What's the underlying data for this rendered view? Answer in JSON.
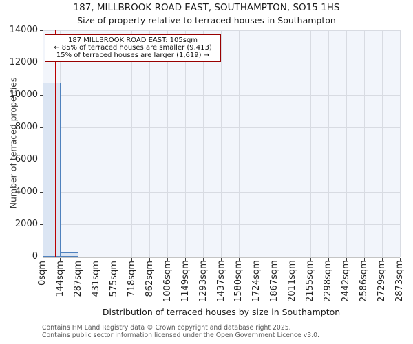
{
  "chart_data": {
    "type": "bar",
    "title": "187, MILLBROOK ROAD EAST, SOUTHAMPTON, SO15 1HS",
    "subtitle": "Size of property relative to terraced houses in Southampton",
    "xlabel": "Distribution of terraced houses by size in Southampton",
    "ylabel": "Number of terraced properties",
    "x_tick_labels": [
      "0sqm",
      "144sqm",
      "287sqm",
      "431sqm",
      "575sqm",
      "718sqm",
      "862sqm",
      "1006sqm",
      "1149sqm",
      "1293sqm",
      "1437sqm",
      "1580sqm",
      "1724sqm",
      "1867sqm",
      "2011sqm",
      "2155sqm",
      "2298sqm",
      "2442sqm",
      "2586sqm",
      "2729sqm",
      "2873sqm"
    ],
    "y_tick_values": [
      0,
      2000,
      4000,
      6000,
      8000,
      10000,
      12000,
      14000
    ],
    "y_tick_labels": [
      "0",
      "2000",
      "4000",
      "6000",
      "8000",
      "10000",
      "12000",
      "14000"
    ],
    "ylim": [
      0,
      14000
    ],
    "x_axis_max_sqm": 2873,
    "bin_width_sqm": 143.65,
    "values": [
      10770,
      262,
      0,
      0,
      0,
      0,
      0,
      0,
      0,
      0,
      0,
      0,
      0,
      0,
      0,
      0,
      0,
      0,
      0,
      0
    ],
    "grid": true,
    "marker_line": {
      "value_sqm": 105,
      "color": "#bb0000"
    },
    "annotation": {
      "border_color": "#990000",
      "lines": [
        "187 MILLBROOK ROAD EAST: 105sqm",
        "← 85% of terraced houses are smaller (9,413)",
        "15% of terraced houses are larger (1,619) →"
      ]
    },
    "colors": {
      "bar_fill": "#dbe5f3",
      "bar_edge": "#4f81bd",
      "plot_bg": "#f2f5fb",
      "gridline": "#d8dbe2",
      "marker": "#bb0000"
    }
  },
  "footer": {
    "line1": "Contains HM Land Registry data © Crown copyright and database right 2025.",
    "line2": "Contains public sector information licensed under the Open Government Licence v3.0."
  }
}
